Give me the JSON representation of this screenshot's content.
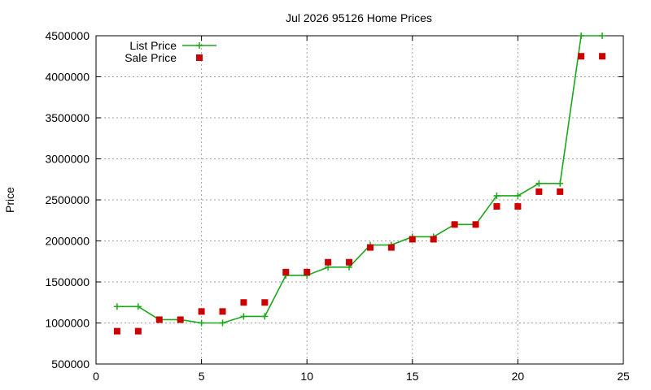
{
  "chart_data": {
    "type": "line",
    "title": "Jul 2026 95126 Home Prices",
    "xlabel": "",
    "ylabel": "Price",
    "xlim": [
      0,
      25
    ],
    "ylim": [
      500000,
      4500000
    ],
    "x_ticks": [
      0,
      5,
      10,
      15,
      20,
      25
    ],
    "y_ticks": [
      500000,
      1000000,
      1500000,
      2000000,
      2500000,
      3000000,
      3500000,
      4000000,
      4500000
    ],
    "x_tick_labels": [
      "0",
      "5",
      "10",
      "15",
      "20",
      "25"
    ],
    "y_tick_labels": [
      "500000",
      "1000000",
      "1500000",
      "2000000",
      "2500000",
      "3000000",
      "3500000",
      "4000000",
      "4500000"
    ],
    "grid": true,
    "legend_position": "top-left",
    "series": [
      {
        "name": "List Price",
        "style": "line-with-plus-markers",
        "color": "#1aa81a",
        "x": [
          1,
          2,
          3,
          4,
          5,
          6,
          7,
          8,
          9,
          10,
          11,
          12,
          13,
          14,
          15,
          16,
          17,
          18,
          19,
          20,
          21,
          22,
          23,
          24
        ],
        "y": [
          1200000,
          1200000,
          1040000,
          1040000,
          1000000,
          1000000,
          1080000,
          1080000,
          1580000,
          1580000,
          1680000,
          1680000,
          1950000,
          1950000,
          2050000,
          2050000,
          2200000,
          2200000,
          2550000,
          2550000,
          2700000,
          2700000,
          4500000,
          4500000
        ]
      },
      {
        "name": "Sale Price",
        "style": "square-markers",
        "color": "#cc0000",
        "x": [
          1,
          2,
          3,
          4,
          5,
          6,
          7,
          8,
          9,
          10,
          11,
          12,
          13,
          14,
          15,
          16,
          17,
          18,
          19,
          20,
          21,
          22,
          23,
          24
        ],
        "y": [
          900000,
          900000,
          1040000,
          1040000,
          1140000,
          1140000,
          1250000,
          1250000,
          1620000,
          1620000,
          1740000,
          1740000,
          1920000,
          1920000,
          2020000,
          2020000,
          2200000,
          2200000,
          2420000,
          2420000,
          2600000,
          2600000,
          4250000,
          4250000
        ]
      }
    ]
  }
}
